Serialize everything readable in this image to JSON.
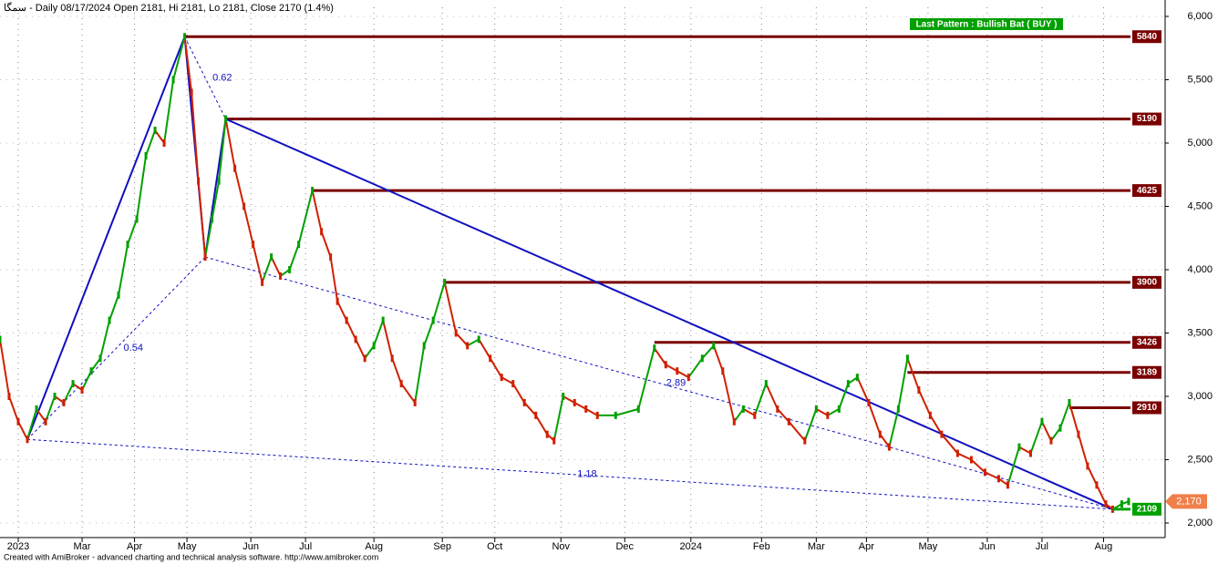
{
  "chart_data": {
    "type": "price",
    "title": "سمگا - Daily 08/17/2024 Open 2181, Hi 2181, Lo 2181, Close 2170 (1.4%)",
    "pattern_label": "Last Pattern : Bullish Bat ( BUY )",
    "footer": "Created with AmiBroker - advanced charting and technical analysis software. http://www.amibroker.com",
    "xlim": [
      0,
      511
    ],
    "xticks": [
      {
        "value": 8,
        "label": "2023"
      },
      {
        "value": 36,
        "label": "Mar"
      },
      {
        "value": 59,
        "label": "Apr"
      },
      {
        "value": 82,
        "label": "May"
      },
      {
        "value": 110,
        "label": "Jun"
      },
      {
        "value": 134,
        "label": "Jul"
      },
      {
        "value": 164,
        "label": "Aug"
      },
      {
        "value": 194,
        "label": "Sep"
      },
      {
        "value": 217,
        "label": "Oct"
      },
      {
        "value": 246,
        "label": "Nov"
      },
      {
        "value": 274,
        "label": "Dec"
      },
      {
        "value": 303,
        "label": "2024"
      },
      {
        "value": 334,
        "label": "Feb"
      },
      {
        "value": 358,
        "label": "Mar"
      },
      {
        "value": 380,
        "label": "Apr"
      },
      {
        "value": 407,
        "label": "May"
      },
      {
        "value": 433,
        "label": "Jun"
      },
      {
        "value": 457,
        "label": "Jul"
      },
      {
        "value": 484,
        "label": "Aug"
      }
    ],
    "ylim": [
      2000,
      6000
    ],
    "yticks": [
      {
        "value": 2000,
        "label": "2,000"
      },
      {
        "value": 2500,
        "label": "2,500"
      },
      {
        "value": 3000,
        "label": "3,000"
      },
      {
        "value": 3500,
        "label": "3,500"
      },
      {
        "value": 4000,
        "label": "4,000"
      },
      {
        "value": 4500,
        "label": "4,500"
      },
      {
        "value": 5000,
        "label": "5,000"
      },
      {
        "value": 5500,
        "label": "5,500"
      },
      {
        "value": 6000,
        "label": "6,000"
      }
    ],
    "grid": true,
    "up_color": "#00a000",
    "down_color": "#d02000",
    "x": [
      0,
      4,
      8,
      12,
      16,
      20,
      24,
      28,
      32,
      36,
      40,
      44,
      48,
      52,
      56,
      60,
      64,
      68,
      72,
      76,
      81,
      84,
      87,
      90,
      93,
      96,
      99,
      103,
      107,
      111,
      115,
      119,
      123,
      127,
      131,
      137,
      141,
      145,
      148,
      152,
      156,
      160,
      164,
      168,
      172,
      176,
      182,
      186,
      190,
      195,
      200,
      205,
      210,
      215,
      220,
      225,
      230,
      235,
      240,
      243,
      247,
      252,
      257,
      262,
      270,
      280,
      287,
      292,
      297,
      302,
      308,
      313,
      317,
      322,
      326,
      331,
      336,
      341,
      346,
      353,
      358,
      363,
      368,
      372,
      376,
      381,
      386,
      390,
      394,
      398,
      403,
      408,
      413,
      420,
      426,
      432,
      438,
      442,
      447,
      452,
      457,
      461,
      465,
      469,
      473,
      477,
      481,
      485,
      488,
      492,
      495
    ],
    "values": [
      3450,
      3000,
      2800,
      2660,
      2900,
      2800,
      3000,
      2950,
      3100,
      3050,
      3200,
      3300,
      3600,
      3800,
      4200,
      4400,
      4900,
      5100,
      5000,
      5500,
      5840,
      5400,
      4700,
      4100,
      4400,
      4700,
      5190,
      4800,
      4500,
      4200,
      3900,
      4100,
      3950,
      4000,
      4200,
      4625,
      4300,
      4100,
      3750,
      3600,
      3450,
      3300,
      3400,
      3600,
      3300,
      3100,
      2950,
      3400,
      3600,
      3900,
      3500,
      3400,
      3450,
      3300,
      3150,
      3100,
      2950,
      2850,
      2700,
      2650,
      3000,
      2950,
      2900,
      2850,
      2850,
      2900,
      3380,
      3250,
      3200,
      3150,
      3300,
      3400,
      3200,
      2800,
      2900,
      2850,
      3100,
      2900,
      2800,
      2650,
      2900,
      2850,
      2900,
      3100,
      3150,
      2950,
      2700,
      2600,
      2900,
      3300,
      3050,
      2850,
      2700,
      2550,
      2500,
      2400,
      2350,
      2300,
      2600,
      2550,
      2800,
      2650,
      2750,
      2950,
      2700,
      2450,
      2300,
      2150,
      2109,
      2150,
      2170
    ],
    "levels": [
      {
        "value": 5840,
        "start": 81
      },
      {
        "value": 5190,
        "start": 99
      },
      {
        "value": 4625,
        "start": 137
      },
      {
        "value": 3900,
        "start": 195
      },
      {
        "value": 3426,
        "start": 287
      },
      {
        "value": 3189,
        "start": 398
      },
      {
        "value": 2910,
        "start": 469
      }
    ],
    "level_color": "#7a0000",
    "target": 2109,
    "last_price": {
      "value": 2170,
      "label": "2,170"
    },
    "pattern": {
      "x": [
        12,
        81,
        90,
        99,
        488
      ],
      "values": [
        2660,
        5840,
        4100,
        5190,
        2109
      ],
      "color": "#1010c0"
    },
    "ratios": [
      0.62,
      0.54,
      2.89,
      1.18
    ]
  }
}
